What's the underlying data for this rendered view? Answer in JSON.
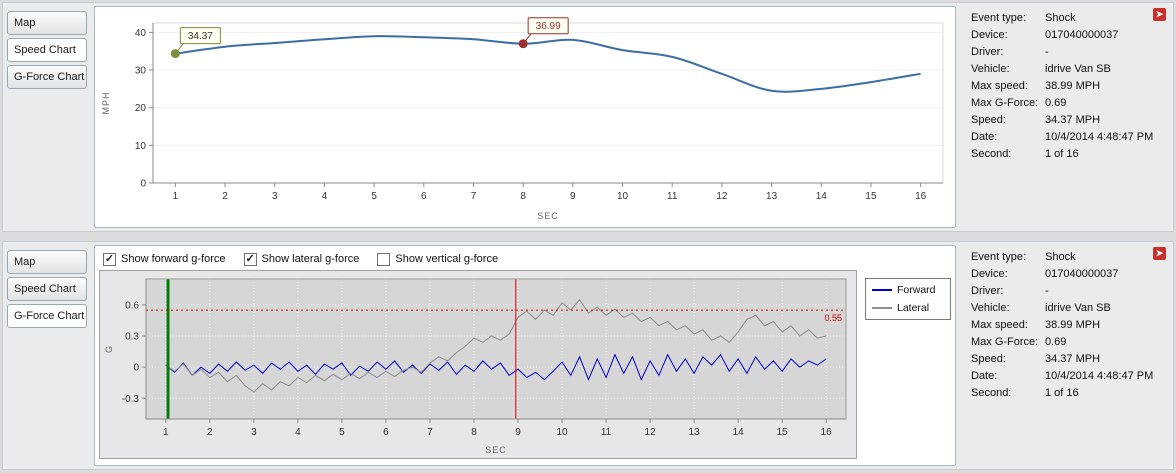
{
  "colors": {
    "speed_line": "#3a6ea5",
    "forward": "#0000cc",
    "lateral": "#8c8c8c",
    "threshold": "#cc0000",
    "start_marker": "#7d8f3c",
    "event_marker": "#9c2f2f"
  },
  "sidebar_tabs": {
    "top": {
      "items": [
        "Map",
        "Speed Chart",
        "G-Force Chart"
      ],
      "active": 1
    },
    "bottom": {
      "items": [
        "Map",
        "Speed Chart",
        "G-Force Chart"
      ],
      "active": 2
    }
  },
  "gforce_controls": [
    {
      "label": "Show forward g-force",
      "checked": true
    },
    {
      "label": "Show lateral g-force",
      "checked": true
    },
    {
      "label": "Show vertical g-force",
      "checked": false
    }
  ],
  "info_panel": {
    "rows": [
      {
        "label": "Event type:",
        "value": "Shock"
      },
      {
        "label": "Device:",
        "value": "017040000037"
      },
      {
        "label": "Driver:",
        "value": "-"
      },
      {
        "label": "Vehicle:",
        "value": "idrive Van SB"
      },
      {
        "label": "Max speed:",
        "value": "38.99 MPH"
      },
      {
        "label": "Max G-Force:",
        "value": "0.69"
      },
      {
        "label": "Speed:",
        "value": "34.37 MPH"
      },
      {
        "label": "Date:",
        "value": "10/4/2014 4:48:47 PM"
      },
      {
        "label": "Second:",
        "value": "1 of 16"
      }
    ]
  },
  "chart_data": [
    {
      "id": "speed",
      "type": "line",
      "title": "",
      "xlabel": "SEC",
      "ylabel": "MPH",
      "xlim": [
        0.55,
        16.45
      ],
      "ylim": [
        0,
        42.5
      ],
      "yticks": [
        0,
        10,
        20,
        30,
        40
      ],
      "xticks": [
        1,
        2,
        3,
        4,
        5,
        6,
        7,
        8,
        9,
        10,
        11,
        12,
        13,
        14,
        15,
        16
      ],
      "x": [
        1,
        2,
        3,
        4,
        5,
        6,
        7,
        8,
        9,
        10,
        11,
        12,
        13,
        14,
        15,
        16
      ],
      "series": [
        {
          "name": "Speed",
          "color": "#3a6ea5",
          "width": 2,
          "smooth": true,
          "values": [
            34.37,
            36.2,
            37.2,
            38.2,
            38.99,
            38.7,
            38.2,
            36.99,
            38.0,
            35.3,
            33.5,
            29.0,
            24.5,
            25.0,
            26.8,
            29.0
          ]
        }
      ],
      "annotations": [
        {
          "x": 1,
          "y": 34.37,
          "label": "34.37",
          "color": "#7d8f3c",
          "text_color": "#333333"
        },
        {
          "x": 8,
          "y": 36.99,
          "label": "36.99",
          "color": "#9c2f2f",
          "text_color": "#9c2f2f"
        }
      ]
    },
    {
      "id": "gforce",
      "type": "line",
      "title": "",
      "xlabel": "SEC",
      "ylabel": "G",
      "xlim": [
        0.55,
        16.45
      ],
      "ylim": [
        -0.5,
        0.85
      ],
      "yticks": [
        -0.3,
        0,
        0.3,
        0.6
      ],
      "xticks": [
        1,
        2,
        3,
        4,
        5,
        6,
        7,
        8,
        9,
        10,
        11,
        12,
        13,
        14,
        15,
        16
      ],
      "x_start": 1,
      "x_step": 0.2,
      "threshold": {
        "y": 0.55,
        "label": "0.55",
        "color": "#cc0000"
      },
      "vlines": [
        {
          "x": 1.05,
          "color": "#067d06",
          "width": 3
        },
        {
          "x": 8.95,
          "color": "#dd0000",
          "width": 1
        }
      ],
      "series": [
        {
          "name": "Forward",
          "color": "#0000cc",
          "width": 1,
          "values": [
            0.02,
            -0.05,
            0.04,
            -0.08,
            0.0,
            -0.06,
            0.03,
            -0.04,
            0.05,
            -0.03,
            0.02,
            -0.06,
            0.04,
            -0.02,
            0.05,
            -0.04,
            0.02,
            -0.07,
            0.03,
            -0.02,
            0.04,
            -0.08,
            0.01,
            -0.04,
            0.05,
            -0.02,
            0.06,
            -0.05,
            0.02,
            -0.06,
            0.03,
            -0.03,
            0.05,
            -0.07,
            0.02,
            -0.04,
            0.06,
            -0.02,
            0.04,
            -0.08,
            -0.02,
            -0.1,
            -0.05,
            -0.12,
            -0.04,
            0.05,
            -0.08,
            0.1,
            -0.12,
            0.08,
            -0.1,
            0.12,
            -0.06,
            0.1,
            -0.12,
            0.06,
            -0.08,
            0.12,
            -0.04,
            0.08,
            -0.06,
            0.1,
            0.02,
            0.12,
            -0.04,
            0.08,
            -0.06,
            0.1,
            -0.02,
            0.06,
            -0.04,
            0.08,
            0.0,
            0.06,
            0.02,
            0.08
          ]
        },
        {
          "name": "Lateral",
          "color": "#8c8c8c",
          "width": 1,
          "values": [
            0.02,
            -0.04,
            0.03,
            -0.08,
            -0.02,
            -0.1,
            -0.05,
            -0.14,
            -0.08,
            -0.18,
            -0.24,
            -0.16,
            -0.22,
            -0.14,
            -0.18,
            -0.1,
            -0.15,
            -0.08,
            -0.13,
            -0.07,
            -0.12,
            -0.06,
            -0.11,
            -0.05,
            -0.1,
            -0.04,
            -0.09,
            -0.03,
            0.0,
            -0.05,
            0.04,
            0.1,
            0.06,
            0.14,
            0.2,
            0.28,
            0.24,
            0.3,
            0.26,
            0.32,
            0.48,
            0.54,
            0.46,
            0.55,
            0.5,
            0.62,
            0.55,
            0.65,
            0.52,
            0.58,
            0.5,
            0.56,
            0.48,
            0.52,
            0.44,
            0.48,
            0.4,
            0.44,
            0.36,
            0.4,
            0.32,
            0.36,
            0.26,
            0.3,
            0.24,
            0.34,
            0.46,
            0.5,
            0.4,
            0.44,
            0.34,
            0.4,
            0.3,
            0.36,
            0.28,
            0.3
          ]
        }
      ],
      "legend": [
        "Forward",
        "Lateral"
      ],
      "legend_position": "right-top"
    }
  ],
  "icons": {
    "panel_action": "➤",
    "checkbox_check": "✓"
  }
}
